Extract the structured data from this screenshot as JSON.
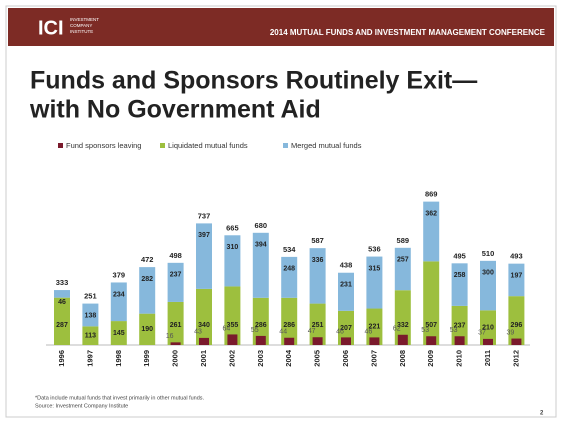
{
  "header": {
    "logo": "ICI",
    "logo_sub": [
      "INVESTMENT",
      "COMPANY",
      "INSTITUTE"
    ],
    "conference": "2014 MUTUAL FUNDS AND INVESTMENT MANAGEMENT CONFERENCE"
  },
  "title_lines": [
    "Funds and Sponsors Routinely Exit—",
    "with No Government Aid"
  ],
  "chart_data": {
    "type": "bar",
    "categories": [
      "1996",
      "1997",
      "1998",
      "1999",
      "2000",
      "2001",
      "2002",
      "2003",
      "2004",
      "2005",
      "2006",
      "2007",
      "2008",
      "2009",
      "2010",
      "2011",
      "2012"
    ],
    "series": [
      {
        "name": "Fund sponsors leaving",
        "color": "#7a1a2c",
        "values": [
          null,
          null,
          null,
          null,
          16,
          43,
          64,
          55,
          44,
          47,
          46,
          46,
          62,
          53,
          53,
          37,
          39
        ]
      },
      {
        "name": "Liquidated mutual funds",
        "color": "#9dbf3e",
        "values": [
          287,
          113,
          145,
          190,
          261,
          340,
          355,
          286,
          286,
          251,
          207,
          221,
          332,
          507,
          237,
          210,
          296
        ]
      },
      {
        "name": "Merged mutual funds",
        "color": "#86b8dc",
        "values": [
          46,
          138,
          234,
          282,
          237,
          397,
          310,
          394,
          248,
          336,
          231,
          315,
          257,
          362,
          258,
          300,
          197
        ]
      }
    ],
    "totals": [
      333,
      251,
      379,
      472,
      498,
      737,
      665,
      680,
      534,
      587,
      438,
      536,
      589,
      869,
      495,
      510,
      493
    ]
  },
  "footnotes": [
    "*Data include mutual funds that invest primarily in other mutual funds.",
    "Source: Investment Company Institute"
  ],
  "page_number": "2"
}
